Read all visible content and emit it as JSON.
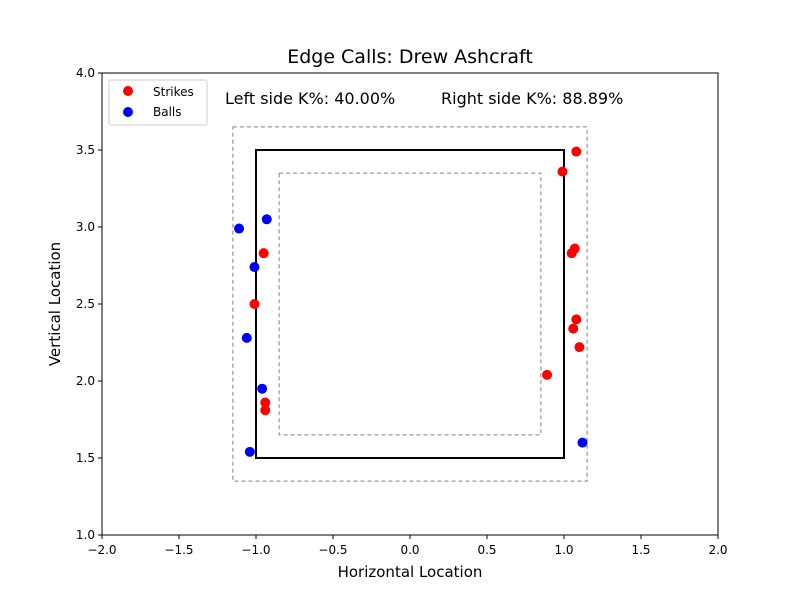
{
  "chart_data": {
    "type": "scatter",
    "title": "Edge Calls: Drew Ashcraft",
    "xlabel": "Horizontal Location",
    "ylabel": "Vertical Location",
    "xlim": [
      -2.0,
      2.0
    ],
    "ylim": [
      1.0,
      4.0
    ],
    "xticks": [
      "−2.0",
      "−1.5",
      "−1.0",
      "−0.5",
      "0.0",
      "0.5",
      "1.0",
      "1.5",
      "2.0"
    ],
    "yticks": [
      "1.0",
      "1.5",
      "2.0",
      "2.5",
      "3.0",
      "3.5",
      "4.0"
    ],
    "grid": false,
    "legend_placement": "top-left",
    "annotations": {
      "left": "Left side K%: 40.00%",
      "right": "Right side K%: 88.89%"
    },
    "zones": {
      "strike_zone": {
        "x": [
          -1.0,
          1.0
        ],
        "y": [
          1.5,
          3.5
        ]
      },
      "outer_zone": {
        "x": [
          -1.15,
          1.15
        ],
        "y": [
          1.35,
          3.65
        ]
      },
      "inner_zone": {
        "x": [
          -0.85,
          0.85
        ],
        "y": [
          1.65,
          3.35
        ]
      }
    },
    "series": [
      {
        "name": "Strikes",
        "color": "#ff0000",
        "points": [
          {
            "x": 1.08,
            "y": 3.49
          },
          {
            "x": 0.99,
            "y": 3.36
          },
          {
            "x": 1.07,
            "y": 2.86
          },
          {
            "x": 1.05,
            "y": 2.83
          },
          {
            "x": 1.08,
            "y": 2.4
          },
          {
            "x": 1.06,
            "y": 2.34
          },
          {
            "x": 1.1,
            "y": 2.22
          },
          {
            "x": 0.89,
            "y": 2.04
          },
          {
            "x": -0.95,
            "y": 2.83
          },
          {
            "x": -1.01,
            "y": 2.5
          },
          {
            "x": -0.94,
            "y": 1.86
          },
          {
            "x": -0.94,
            "y": 1.81
          }
        ]
      },
      {
        "name": "Balls",
        "color": "#0000ff",
        "points": [
          {
            "x": -0.93,
            "y": 3.05
          },
          {
            "x": -1.11,
            "y": 2.99
          },
          {
            "x": -1.01,
            "y": 2.74
          },
          {
            "x": -1.06,
            "y": 2.28
          },
          {
            "x": -0.96,
            "y": 1.95
          },
          {
            "x": -1.04,
            "y": 1.54
          },
          {
            "x": 1.12,
            "y": 1.6
          }
        ]
      }
    ]
  }
}
